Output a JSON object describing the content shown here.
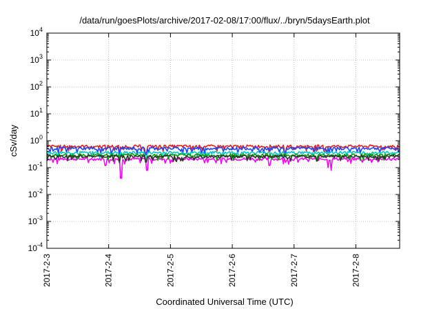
{
  "chart_data": {
    "type": "line",
    "title": "/data/run/goesPlots/archive/2017-02-08/17:00/flux/../bryn/5daysEarth.plot",
    "xlabel": "Coordinated Universal Time (UTC)",
    "ylabel": "cSv/day",
    "yscale": "log",
    "ylim": [
      0.0001,
      10000
    ],
    "xlim": [
      "2017-2-3",
      "2017-2-8 17:00"
    ],
    "grid": true,
    "x_ticks": [
      "2017-2-3",
      "2017-2-4",
      "2017-2-5",
      "2017-2-6",
      "2017-2-7",
      "2017-2-8"
    ],
    "y_ticks": [
      {
        "base": "10",
        "exp": "-4"
      },
      {
        "base": "10",
        "exp": "-3"
      },
      {
        "base": "10",
        "exp": "-2"
      },
      {
        "base": "10",
        "exp": "-1"
      },
      {
        "base": "10",
        "exp": "0"
      },
      {
        "base": "10",
        "exp": "1"
      },
      {
        "base": "10",
        "exp": "2"
      },
      {
        "base": "10",
        "exp": "3"
      },
      {
        "base": "10",
        "exp": "4"
      }
    ],
    "series": [
      {
        "color": "#ff00ff",
        "base": 0.21,
        "dips": [
          [
            1.2,
            0.04
          ],
          [
            1.62,
            0.08
          ],
          [
            2.55,
            0.15
          ],
          [
            3.6,
            0.12
          ],
          [
            4.55,
            0.1
          ],
          [
            4.6,
            0.08
          ],
          [
            0.95,
            0.12
          ]
        ]
      },
      {
        "color": "#e02020",
        "base": 0.62,
        "dips": [
          [
            1.18,
            0.3
          ],
          [
            1.6,
            0.35
          ],
          [
            3.85,
            0.38
          ],
          [
            4.5,
            0.4
          ]
        ]
      },
      {
        "color": "#2040ff",
        "base": 0.52,
        "dips": [
          [
            1.18,
            0.25
          ],
          [
            1.6,
            0.3
          ],
          [
            3.85,
            0.32
          ]
        ]
      },
      {
        "color": "#00c8c8",
        "base": 0.36,
        "dips": [
          [
            1.18,
            0.2
          ],
          [
            1.6,
            0.22
          ],
          [
            3.85,
            0.25
          ]
        ]
      },
      {
        "color": "#00a000",
        "base": 0.29,
        "dips": [
          [
            1.18,
            0.17
          ],
          [
            1.6,
            0.18
          ]
        ]
      },
      {
        "color": "#303030",
        "base": 0.26,
        "dips": [
          [
            1.18,
            0.15
          ],
          [
            1.6,
            0.16
          ]
        ]
      }
    ]
  }
}
